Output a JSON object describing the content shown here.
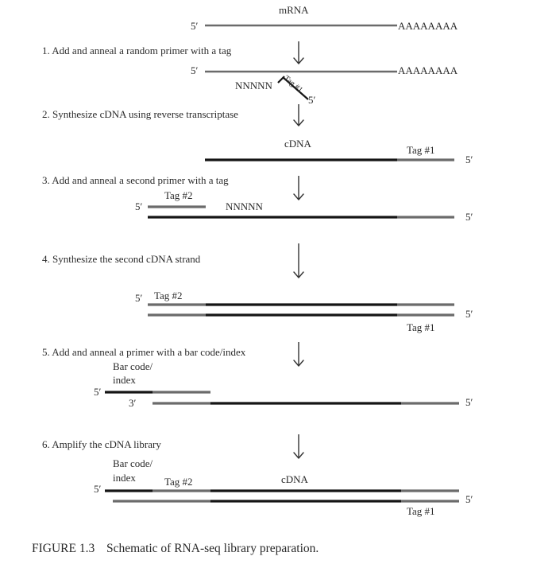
{
  "labels": {
    "mrna": "mRNA",
    "five_prime": "5′",
    "three_prime": "3′",
    "poly_a": "AAAAAAAA",
    "random_n": "NNNNN",
    "tag1": "Tag #1",
    "tag2": "Tag #2",
    "cdna": "cDNA",
    "barcode_line1": "Bar code/",
    "barcode_line2": "index"
  },
  "steps": [
    "1. Add and anneal a random primer with a tag",
    "2. Synthesize cDNA using reverse transcriptase",
    "3. Add and anneal a second primer with a tag",
    "4. Synthesize the second cDNA strand",
    "5. Add and anneal a primer with a bar code/index",
    "6. Amplify the cDNA library"
  ],
  "caption": {
    "figure_number": "FIGURE 1.3",
    "text": "Schematic of RNA-seq library preparation."
  },
  "colors": {
    "dark_strand": "#151515",
    "gray_strand": "#6b6b6b",
    "text": "#2a2a2a"
  }
}
